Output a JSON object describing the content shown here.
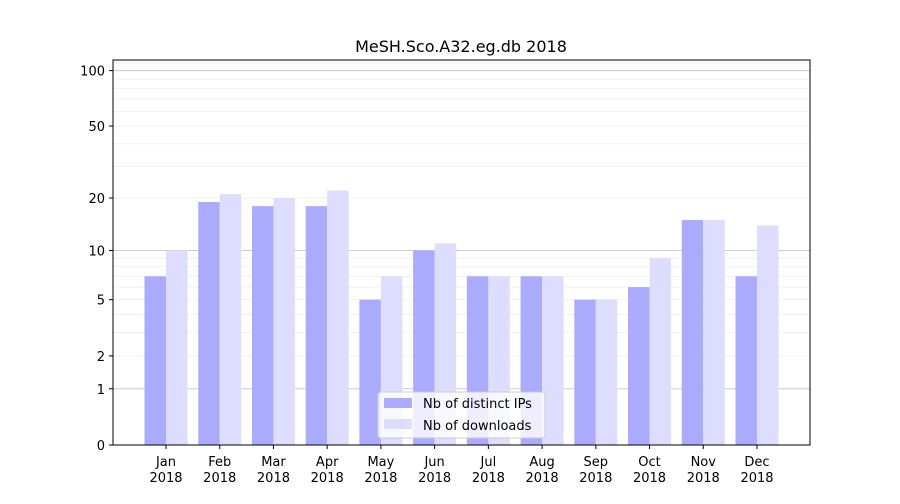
{
  "chart_data": {
    "type": "bar",
    "title": "MeSH.Sco.A32.eg.db 2018",
    "xlabel": "",
    "ylabel": "",
    "y_scale": "log(y+1)",
    "ylim": [
      0,
      110
    ],
    "y_ticks": [
      0,
      1,
      2,
      5,
      10,
      20,
      50,
      100
    ],
    "grid": true,
    "legend_position": "bottom-center",
    "categories": [
      "Jan\n2018",
      "Feb\n2018",
      "Mar\n2018",
      "Apr\n2018",
      "May\n2018",
      "Jun\n2018",
      "Jul\n2018",
      "Aug\n2018",
      "Sep\n2018",
      "Oct\n2018",
      "Nov\n2018",
      "Dec\n2018"
    ],
    "series": [
      {
        "name": "Nb of distinct IPs",
        "color": "#aaaaff",
        "values": [
          7,
          19,
          18,
          18,
          5,
          10,
          7,
          7,
          5,
          6,
          15,
          7
        ]
      },
      {
        "name": "Nb of downloads",
        "color": "#ddddff",
        "values": [
          10,
          21,
          20,
          22,
          7,
          11,
          7,
          7,
          5,
          9,
          15,
          14
        ]
      }
    ]
  }
}
